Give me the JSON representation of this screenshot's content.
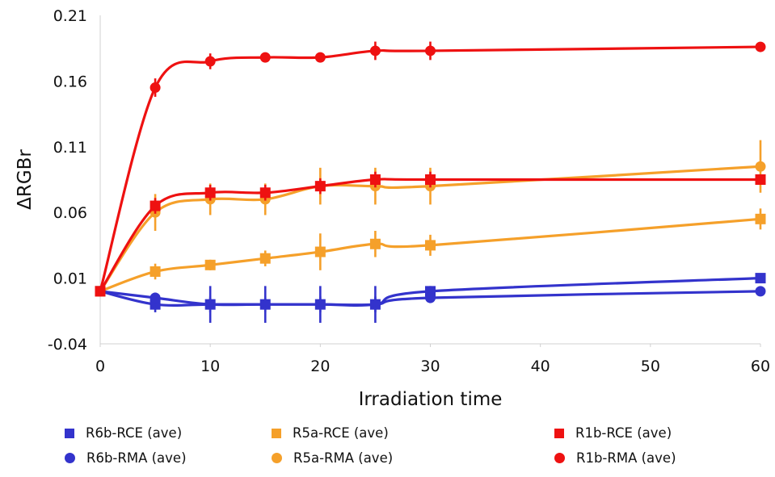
{
  "chart_data": {
    "type": "line",
    "xlabel": "Irradiation time",
    "ylabel": "ΔRGBr",
    "xlim": [
      0,
      60
    ],
    "ylim": [
      -0.04,
      0.21
    ],
    "xticks": [
      "0",
      "10",
      "20",
      "30",
      "40",
      "50",
      "60"
    ],
    "yticks": [
      "-0.04",
      "0.01",
      "0.06",
      "0.11",
      "0.16",
      "0.21"
    ],
    "grid": false,
    "legend_position": "bottom",
    "series": [
      {
        "name": "R6b-RCE (ave)",
        "color": "#3333cc",
        "marker": "square",
        "x": [
          0,
          5,
          10,
          15,
          20,
          25,
          30,
          60
        ],
        "y": [
          0.0,
          -0.01,
          -0.01,
          -0.01,
          -0.01,
          -0.01,
          0.0,
          0.01
        ],
        "err": [
          0.0,
          0.006,
          0.014,
          0.014,
          0.014,
          0.014,
          0.004,
          0.002
        ]
      },
      {
        "name": "R6b-RMA (ave)",
        "color": "#3333cc",
        "marker": "circle",
        "x": [
          0,
          5,
          10,
          15,
          20,
          25,
          30,
          60
        ],
        "y": [
          0.0,
          -0.005,
          -0.01,
          -0.01,
          -0.01,
          -0.01,
          -0.005,
          0.0
        ],
        "err": [
          0.0,
          0.004,
          0.006,
          0.006,
          0.006,
          0.006,
          0.004,
          0.002
        ]
      },
      {
        "name": "R5a-RCE (ave)",
        "color": "#f5a02a",
        "marker": "square",
        "x": [
          0,
          5,
          10,
          15,
          20,
          25,
          30,
          60
        ],
        "y": [
          0.0,
          0.015,
          0.02,
          0.025,
          0.03,
          0.036,
          0.035,
          0.055
        ],
        "err": [
          0.0,
          0.006,
          0.004,
          0.006,
          0.014,
          0.01,
          0.008,
          0.008
        ]
      },
      {
        "name": "R5a-RMA (ave)",
        "color": "#f5a02a",
        "marker": "circle",
        "x": [
          0,
          5,
          10,
          15,
          20,
          25,
          30,
          60
        ],
        "y": [
          0.0,
          0.06,
          0.07,
          0.07,
          0.08,
          0.08,
          0.08,
          0.095
        ],
        "err": [
          0.0,
          0.014,
          0.012,
          0.012,
          0.014,
          0.014,
          0.014,
          0.02
        ]
      },
      {
        "name": "R1b-RCE (ave)",
        "color": "#ee1111",
        "marker": "square",
        "x": [
          0,
          5,
          10,
          15,
          20,
          25,
          30,
          60
        ],
        "y": [
          0.0,
          0.065,
          0.075,
          0.075,
          0.08,
          0.085,
          0.085,
          0.085
        ],
        "err": [
          0.0,
          0.006,
          0.006,
          0.006,
          0.006,
          0.006,
          0.006,
          0.004
        ]
      },
      {
        "name": "R1b-RMA (ave)",
        "color": "#ee1111",
        "marker": "circle",
        "x": [
          0,
          5,
          10,
          15,
          20,
          25,
          30,
          60
        ],
        "y": [
          0.0,
          0.155,
          0.175,
          0.178,
          0.178,
          0.183,
          0.183,
          0.186
        ],
        "err": [
          0.0,
          0.007,
          0.006,
          0.003,
          0.003,
          0.007,
          0.007,
          0.003
        ]
      }
    ]
  },
  "legend": {
    "items": [
      {
        "label": "R6b-RCE (ave)",
        "color": "#3333cc",
        "marker": "square"
      },
      {
        "label": "R5a-RCE (ave)",
        "color": "#f5a02a",
        "marker": "square"
      },
      {
        "label": "R1b-RCE (ave)",
        "color": "#ee1111",
        "marker": "square"
      },
      {
        "label": "R6b-RMA (ave)",
        "color": "#3333cc",
        "marker": "circle"
      },
      {
        "label": "R5a-RMA (ave)",
        "color": "#f5a02a",
        "marker": "circle"
      },
      {
        "label": "R1b-RMA (ave)",
        "color": "#ee1111",
        "marker": "circle"
      }
    ]
  }
}
